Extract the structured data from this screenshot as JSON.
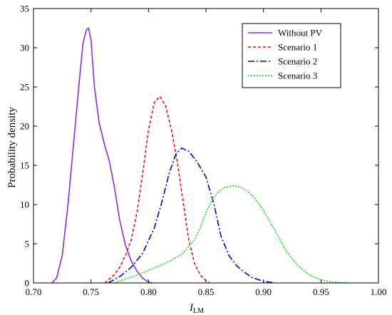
{
  "chart_data": {
    "type": "line",
    "title": "",
    "xlabel": "I",
    "xlabel_sub": "LM",
    "ylabel": "Probability density",
    "xlim": [
      0.7,
      1.0
    ],
    "ylim": [
      0,
      35
    ],
    "xticks": [
      "0.70",
      "0.75",
      "0.80",
      "0.85",
      "0.90",
      "0.95",
      "1.00"
    ],
    "yticks": [
      "0",
      "5",
      "10",
      "15",
      "20",
      "25",
      "30",
      "35"
    ],
    "grid": false,
    "legend_position": "top-right",
    "series": [
      {
        "name": "Without PV",
        "color": "#8B2BE2",
        "dash": "solid",
        "x": [
          0.716,
          0.72,
          0.725,
          0.73,
          0.735,
          0.74,
          0.743,
          0.746,
          0.748,
          0.75,
          0.753,
          0.757,
          0.762,
          0.766,
          0.77,
          0.775,
          0.78,
          0.785,
          0.79,
          0.795,
          0.8,
          0.803
        ],
        "y": [
          0,
          0.6,
          3.5,
          10,
          18,
          26,
          30.5,
          32.3,
          32.5,
          31,
          25,
          20.5,
          17.5,
          15.5,
          12.5,
          8,
          4.8,
          2.8,
          1.5,
          0.6,
          0.1,
          0
        ]
      },
      {
        "name": "Scenario 1",
        "color": "#FF0000",
        "dash": "4,3",
        "x": [
          0.762,
          0.77,
          0.775,
          0.78,
          0.785,
          0.79,
          0.795,
          0.8,
          0.805,
          0.81,
          0.815,
          0.82,
          0.825,
          0.83,
          0.835,
          0.84,
          0.845,
          0.85,
          0.853
        ],
        "y": [
          0,
          1,
          2,
          3.5,
          5.5,
          9,
          14,
          19.5,
          23,
          23.8,
          22.5,
          19.5,
          15.5,
          10.5,
          5.5,
          2.5,
          1,
          0.3,
          0
        ]
      },
      {
        "name": "Scenario 2",
        "color": "#0000DD",
        "dash": "9,3,2,3",
        "x": [
          0.765,
          0.775,
          0.785,
          0.795,
          0.805,
          0.812,
          0.818,
          0.824,
          0.829,
          0.835,
          0.842,
          0.85,
          0.857,
          0.863,
          0.87,
          0.876,
          0.882,
          0.89,
          0.9,
          0.91
        ],
        "y": [
          0,
          0.8,
          2,
          3.8,
          7,
          10.5,
          14,
          16.5,
          17.2,
          16.8,
          15.5,
          13.5,
          10,
          6,
          3.5,
          2.3,
          1.5,
          0.7,
          0.2,
          0
        ]
      },
      {
        "name": "Scenario 3",
        "color": "#00DD00",
        "dash": "2,2",
        "x": [
          0.77,
          0.78,
          0.79,
          0.8,
          0.81,
          0.82,
          0.83,
          0.84,
          0.845,
          0.85,
          0.855,
          0.86,
          0.865,
          0.87,
          0.875,
          0.88,
          0.885,
          0.89,
          0.895,
          0.9,
          0.905,
          0.91,
          0.915,
          0.92,
          0.93,
          0.94,
          0.95,
          0.96,
          0.97,
          0.975
        ],
        "y": [
          0,
          0.5,
          1,
          1.6,
          2.2,
          2.9,
          3.8,
          5.5,
          7,
          9,
          10.5,
          11.5,
          12.1,
          12.3,
          12.4,
          12.2,
          11.8,
          11.2,
          10.3,
          9.2,
          8,
          6.7,
          5.3,
          4,
          2.2,
          1,
          0.4,
          0.1,
          0.02,
          0
        ]
      }
    ]
  }
}
